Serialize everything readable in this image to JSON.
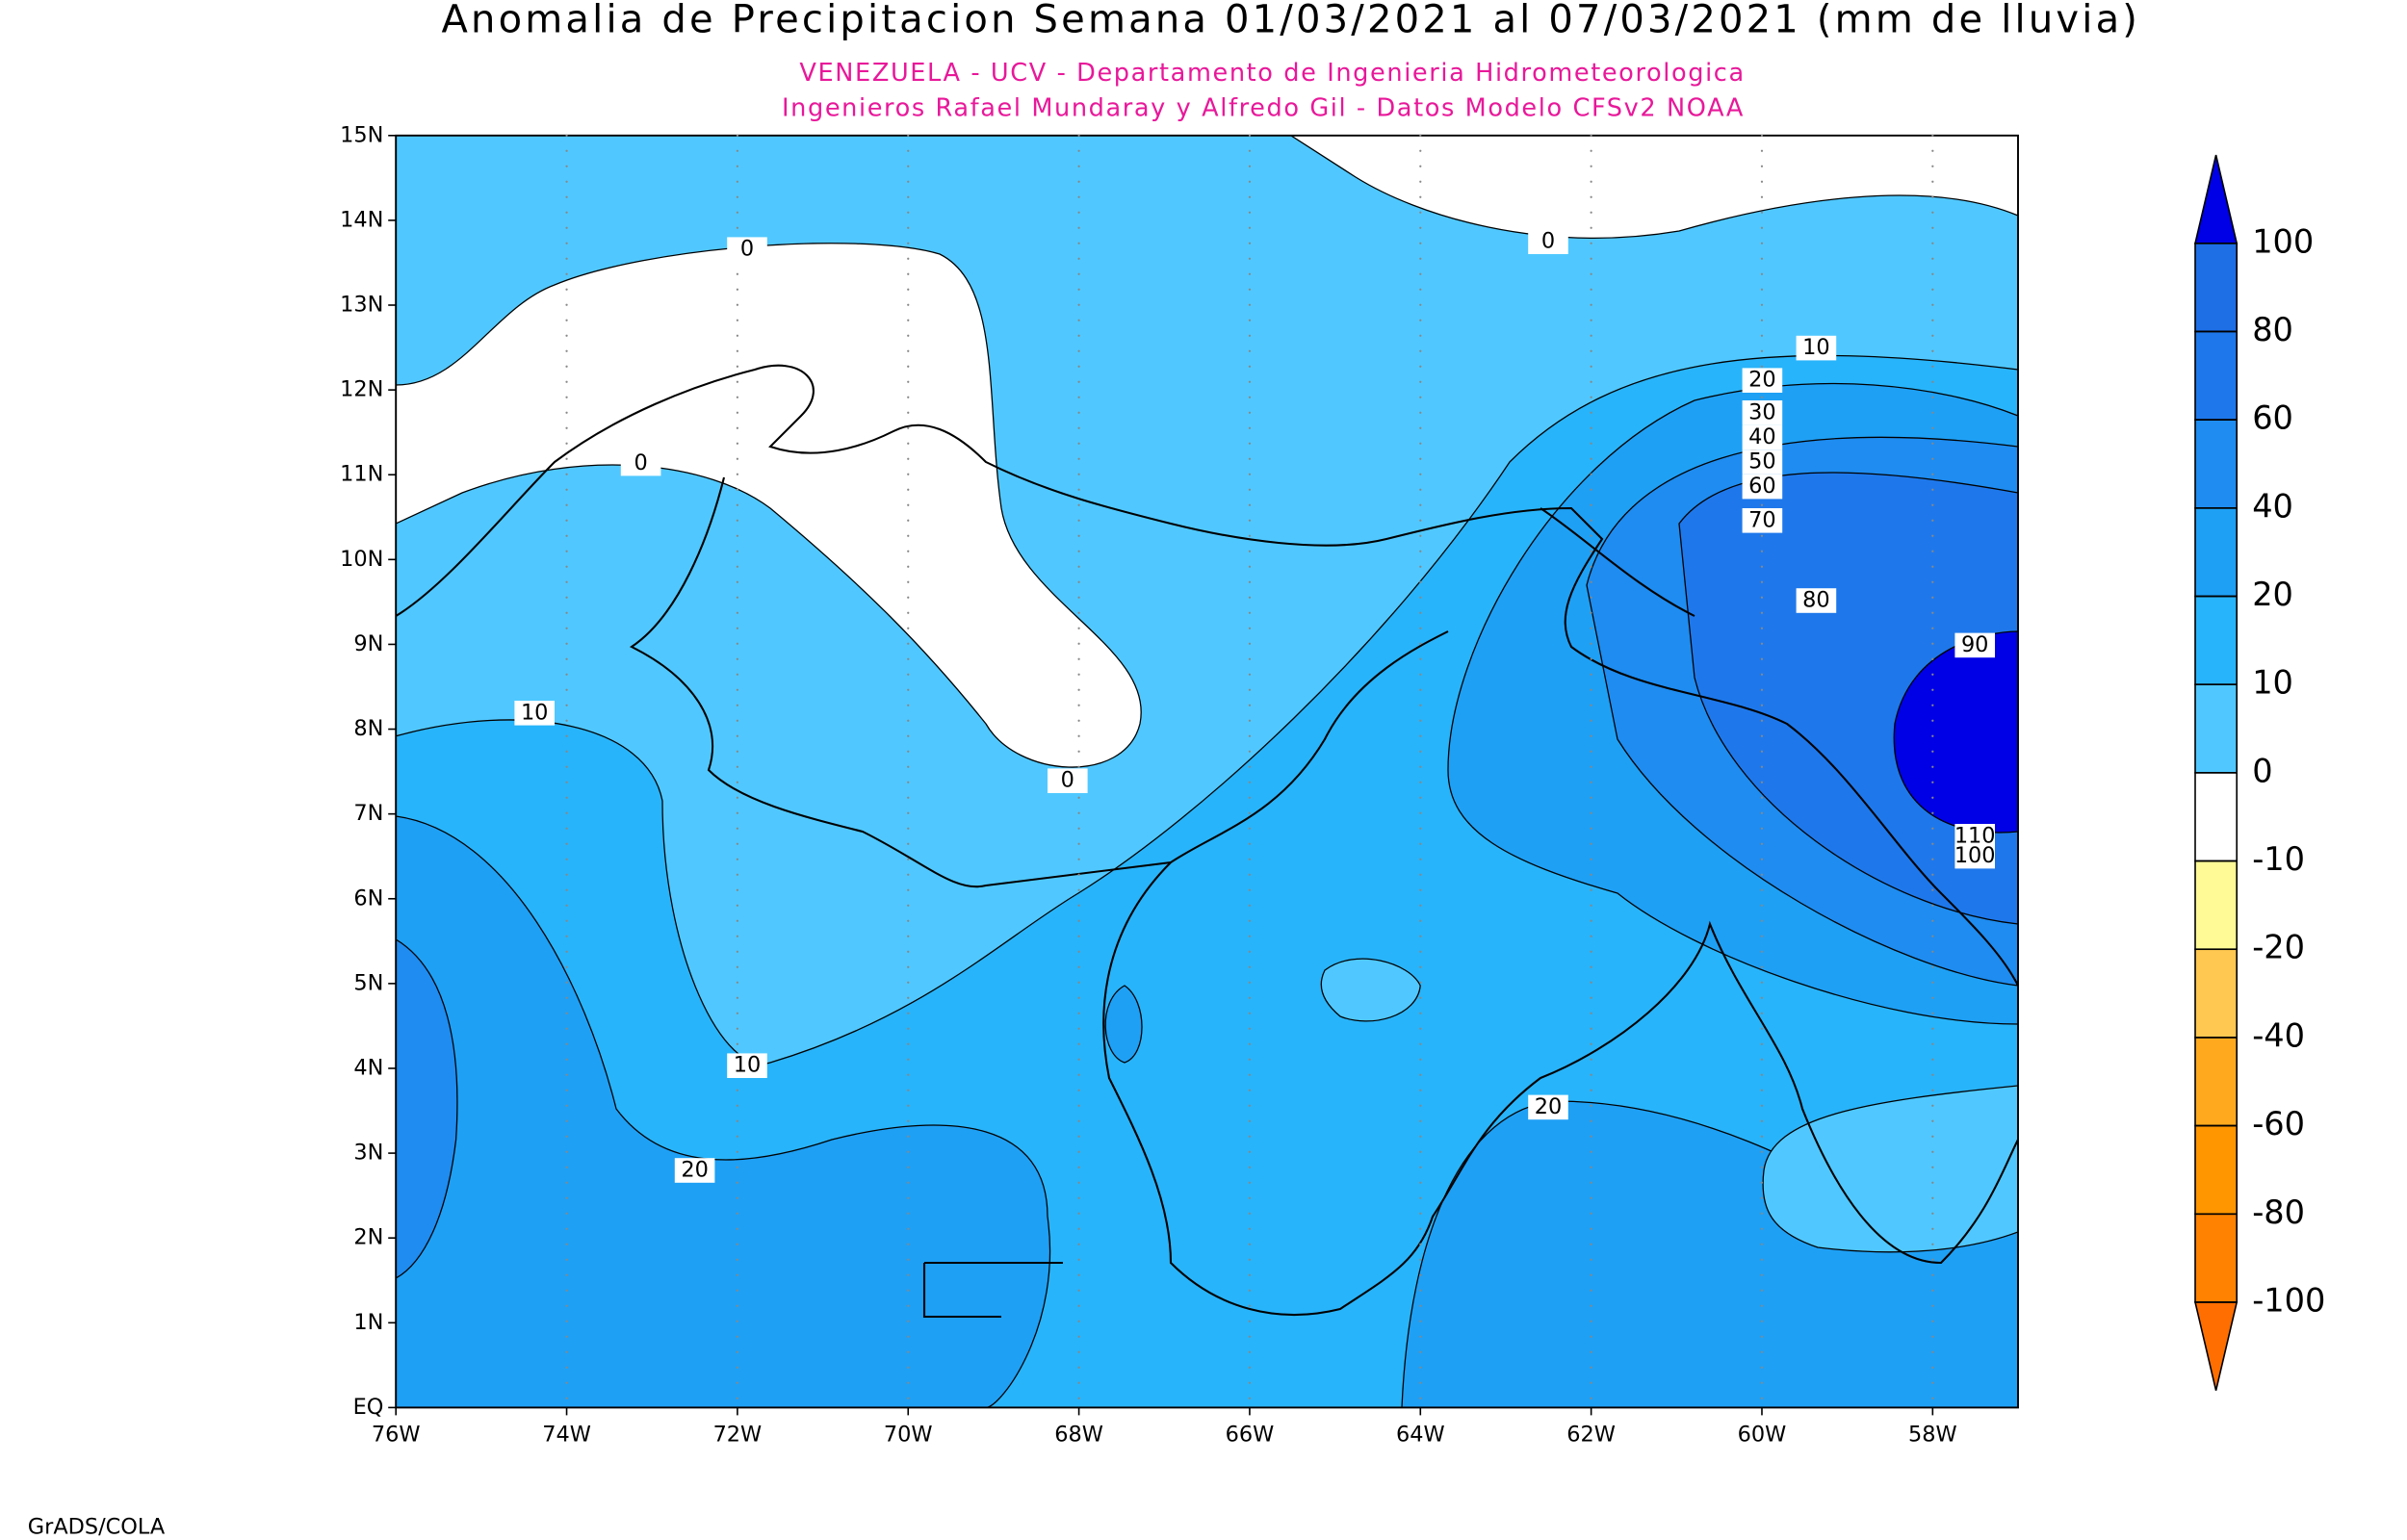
{
  "title": "Anomalia de Precipitacion Semana 01/03/2021 al 07/03/2021 (mm de lluvia)",
  "subtitle_lines": [
    "VENEZUELA - UCV - Departamento de Ingenieria Hidrometeorologica",
    "Ingenieros Rafael Mundaray y Alfredo Gil - Datos Modelo CFSv2 NOAA"
  ],
  "map": {
    "lon_labels": [
      "76W",
      "74W",
      "72W",
      "70W",
      "68W",
      "66W",
      "64W",
      "62W",
      "60W",
      "58W"
    ],
    "lat_labels": [
      "EQ",
      "1N",
      "2N",
      "3N",
      "4N",
      "5N",
      "6N",
      "7N",
      "8N",
      "9N",
      "10N",
      "11N",
      "12N",
      "13N",
      "14N",
      "15N"
    ],
    "contour_labels": [
      0,
      0,
      0,
      0,
      10,
      20,
      30,
      40,
      50,
      60,
      70,
      80,
      90,
      10,
      10,
      20,
      20,
      110,
      100
    ]
  },
  "colorbar": {
    "levels": [
      100,
      80,
      60,
      40,
      20,
      10,
      0,
      -10,
      -20,
      -40,
      -60,
      -80,
      -100
    ],
    "colors": [
      "#0000e6",
      "#1e6ee6",
      "#1e78eb",
      "#1e8cf0",
      "#1ea0f5",
      "#28b4fa",
      "#50c8ff",
      "#ffffff",
      "#fffa96",
      "#ffc850",
      "#ffaa1e",
      "#ff9600",
      "#ff8200",
      "#ff6e00"
    ]
  },
  "footer": "GrADS/COLA"
}
